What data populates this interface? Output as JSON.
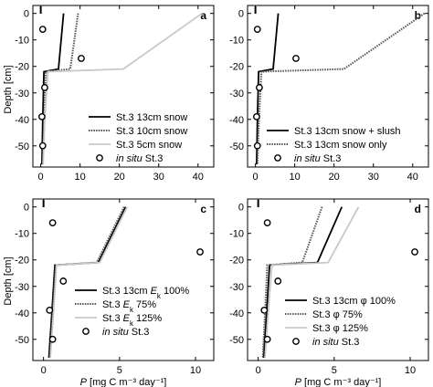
{
  "chart_data": [
    {
      "type": "line",
      "panel_label": "a",
      "xlim": [
        -2,
        44
      ],
      "ylim": [
        -58,
        3
      ],
      "xticks": [
        0,
        10,
        20,
        30,
        40
      ],
      "yticks": [
        0,
        -10,
        -20,
        -30,
        -40,
        -50
      ],
      "xtick_labels": [
        "0",
        "10",
        "20",
        "30",
        "40"
      ],
      "ytick_labels": [
        "0",
        "-10",
        "-20",
        "-30",
        "-40",
        "-50"
      ],
      "series": [
        {
          "name": "St.3 13cm snow",
          "style": "solid",
          "color": "#000000",
          "x": [
            5.8,
            4.5,
            0.8,
            0.5,
            0.3
          ],
          "y": [
            0,
            -21,
            -22,
            -40,
            -57
          ]
        },
        {
          "name": "St.3 10cm snow",
          "style": "dotted",
          "color": "#555555",
          "x": [
            9.5,
            7.5,
            1.3,
            0.8,
            0.5
          ],
          "y": [
            0,
            -21,
            -22,
            -40,
            -57
          ]
        },
        {
          "name": "St.3 5cm snow",
          "style": "solid",
          "color": "#c8c8c8",
          "x": [
            41,
            21,
            1.8,
            1.0,
            0.6
          ],
          "y": [
            0,
            -21,
            -22,
            -40,
            -57
          ]
        }
      ],
      "insitu": {
        "name": "in situ St.3",
        "x": [
          0.5,
          10.3,
          1.0,
          0.3,
          0.5
        ],
        "y": [
          -6,
          -17,
          -28,
          -39,
          -50
        ]
      },
      "legend": "bottom-right"
    },
    {
      "type": "line",
      "panel_label": "b",
      "xlim": [
        -2,
        44
      ],
      "ylim": [
        -58,
        3
      ],
      "xticks": [
        0,
        10,
        20,
        30,
        40
      ],
      "yticks": [
        0,
        -10,
        -20,
        -30,
        -40,
        -50
      ],
      "xtick_labels": [
        "0",
        "10",
        "20",
        "30",
        "40"
      ],
      "ytick_labels": [
        "0",
        "-10",
        "-20",
        "-30",
        "-40",
        "-50"
      ],
      "series": [
        {
          "name": "St.3 13cm snow + slush",
          "style": "solid",
          "color": "#000000",
          "x": [
            5.8,
            4.5,
            0.8,
            0.5,
            0.3
          ],
          "y": [
            0,
            -21,
            -22,
            -40,
            -57
          ]
        },
        {
          "name": "St.3 13cm snow only",
          "style": "dotted",
          "color": "#555555",
          "x": [
            43,
            22.5,
            1.5,
            0.9,
            0.5
          ],
          "y": [
            0,
            -21,
            -22,
            -40,
            -57
          ]
        }
      ],
      "insitu": {
        "name": "in situ St.3",
        "x": [
          0.5,
          10.3,
          1.0,
          0.3,
          0.5
        ],
        "y": [
          -6,
          -17,
          -28,
          -39,
          -50
        ]
      },
      "legend": "bottom-right"
    },
    {
      "type": "line",
      "panel_label": "c",
      "xlim": [
        -0.7,
        11.2
      ],
      "ylim": [
        -58,
        3
      ],
      "xticks": [
        0,
        5,
        10
      ],
      "yticks": [
        0,
        -10,
        -20,
        -30,
        -40,
        -50
      ],
      "xtick_labels": [
        "0",
        "5",
        "10"
      ],
      "ytick_labels": [
        "0",
        "-10",
        "-20",
        "-30",
        "-40",
        "-50"
      ],
      "xlabel": "P [mg C  m⁻³ day⁻¹]",
      "series": [
        {
          "name": "St.3 13cm Ek 100%",
          "style": "solid",
          "color": "#000000",
          "x": [
            5.4,
            3.6,
            0.75,
            0.55,
            0.35
          ],
          "y": [
            0,
            -21,
            -22,
            -40,
            -57
          ]
        },
        {
          "name": "St.3 Ek 75%",
          "style": "dotted",
          "color": "#555555",
          "x": [
            5.3,
            3.5,
            0.8,
            0.6,
            0.4
          ],
          "y": [
            0,
            -21,
            -22,
            -40,
            -57
          ]
        },
        {
          "name": "St.3 Ek 125%",
          "style": "solid",
          "color": "#c8c8c8",
          "x": [
            5.5,
            3.7,
            0.85,
            0.65,
            0.45
          ],
          "y": [
            0,
            -21,
            -22,
            -40,
            -57
          ]
        }
      ],
      "insitu": {
        "name": "in situ St.3",
        "x": [
          0.6,
          10.3,
          1.3,
          0.4,
          0.6
        ],
        "y": [
          -6,
          -17,
          -28,
          -39,
          -50
        ]
      },
      "legend": "bottom-right"
    },
    {
      "type": "line",
      "panel_label": "d",
      "xlim": [
        -0.7,
        11.2
      ],
      "ylim": [
        -58,
        3
      ],
      "xticks": [
        0,
        5,
        10
      ],
      "yticks": [
        0,
        -10,
        -20,
        -30,
        -40,
        -50
      ],
      "xtick_labels": [
        "0",
        "5",
        "10"
      ],
      "ytick_labels": [
        "0",
        "-10",
        "-20",
        "-30",
        "-40",
        "-50"
      ],
      "xlabel": "P [mg C  m⁻³ day⁻¹]",
      "series": [
        {
          "name": "St.3 13cm φ 100%",
          "style": "solid",
          "color": "#000000",
          "x": [
            5.5,
            3.9,
            0.75,
            0.55,
            0.35
          ],
          "y": [
            0,
            -21,
            -22,
            -40,
            -57
          ]
        },
        {
          "name": "St.3 φ 75%",
          "style": "dotted",
          "color": "#555555",
          "x": [
            4.2,
            2.9,
            0.6,
            0.45,
            0.3
          ],
          "y": [
            0,
            -21,
            -22,
            -40,
            -57
          ]
        },
        {
          "name": "St.3 φ 125%",
          "style": "solid",
          "color": "#c8c8c8",
          "x": [
            6.6,
            4.6,
            0.9,
            0.65,
            0.45
          ],
          "y": [
            0,
            -21,
            -22,
            -40,
            -57
          ]
        }
      ],
      "insitu": {
        "name": "in situ St.3",
        "x": [
          0.6,
          10.3,
          1.3,
          0.4,
          0.6
        ],
        "y": [
          -6,
          -17,
          -28,
          -39,
          -50
        ]
      },
      "legend": "bottom-right"
    }
  ],
  "ylabel": "Depth [cm]",
  "legend_labels": {
    "a": [
      {
        "pre": "St.3 13cm snow",
        "sub": "",
        "post": ""
      },
      {
        "pre": "St.3 10cm snow",
        "sub": "",
        "post": ""
      },
      {
        "pre": "St.3 5cm snow",
        "sub": "",
        "post": ""
      },
      {
        "pre": "in situ",
        "sub": "",
        "post": " St.3",
        "italic_pre": true
      }
    ],
    "b": [
      {
        "pre": "St.3 13cm snow + slush",
        "sub": "",
        "post": ""
      },
      {
        "pre": "St.3 13cm snow only",
        "sub": "",
        "post": ""
      },
      {
        "pre": "in situ",
        "sub": "",
        "post": " St.3",
        "italic_pre": true
      }
    ],
    "c": [
      {
        "pre": "St.3 13cm ",
        "italic": "E",
        "sub": "k",
        "post": " 100%"
      },
      {
        "pre": "St.3 ",
        "italic": "E",
        "sub": "k",
        "post": " 75%"
      },
      {
        "pre": "St.3 ",
        "italic": "E",
        "sub": "k",
        "post": " 125%"
      },
      {
        "pre": "in situ",
        "sub": "",
        "post": " St.3",
        "italic_pre": true
      }
    ],
    "d": [
      {
        "pre": "St.3 13cm φ 100%",
        "sub": "",
        "post": ""
      },
      {
        "pre": "St.3 φ 75%",
        "sub": "",
        "post": ""
      },
      {
        "pre": "St.3 φ 125%",
        "sub": "",
        "post": ""
      },
      {
        "pre": "in situ",
        "sub": "",
        "post": " St.3",
        "italic_pre": true
      }
    ]
  }
}
